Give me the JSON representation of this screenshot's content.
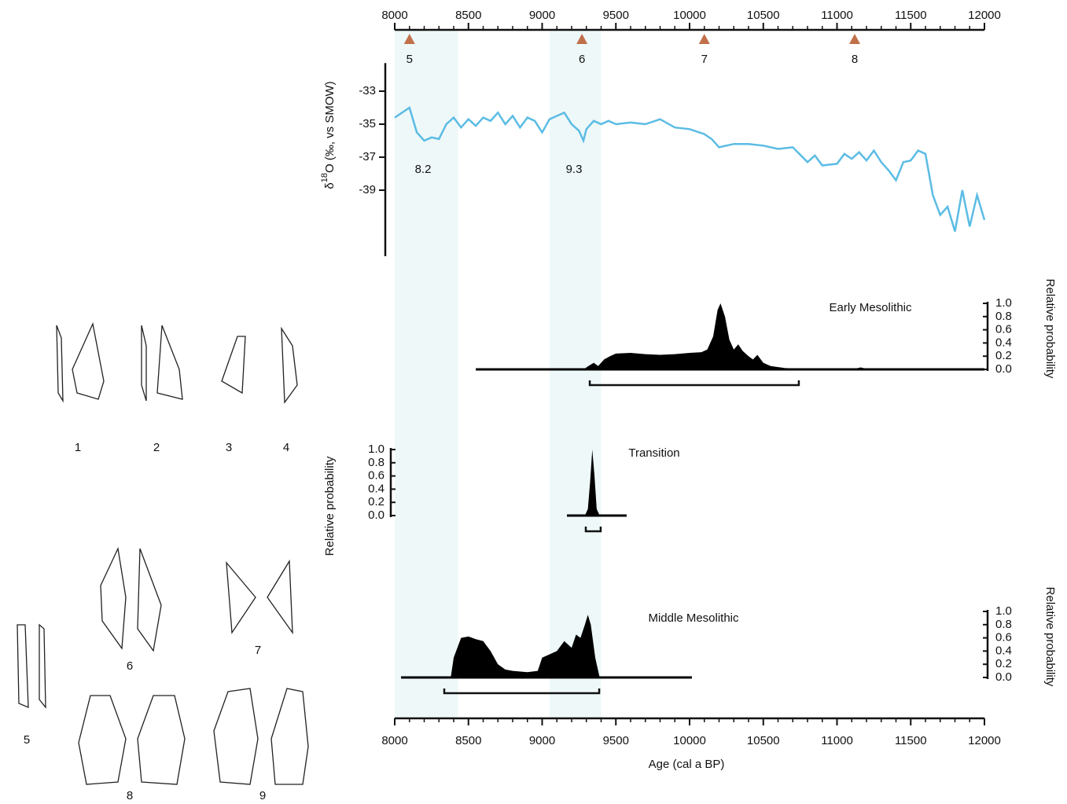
{
  "artifact_labels": [
    "1",
    "2",
    "3",
    "4",
    "5",
    "6",
    "7",
    "8",
    "9"
  ],
  "chart_data": [
    {
      "type": "line",
      "xlim": [
        8000,
        12000
      ],
      "xticks": [
        8000,
        8500,
        9000,
        9500,
        10000,
        10500,
        11000,
        11500,
        12000
      ],
      "minor_tick_step": 100,
      "xlabel": "Age (cal a BP)",
      "ylabel_symbol": "δ",
      "ylabel_superscript": "18",
      "ylabel_rest": "O (‰, vs SMOW)",
      "ylim": [
        -43,
        -31.3
      ],
      "yticks": [
        -33,
        -35,
        -37,
        -39
      ],
      "color": "#5bbce4",
      "bands": [
        [
          8000,
          8430
        ],
        [
          9050,
          9400
        ]
      ],
      "band_color": "#eef8f8",
      "annotations": [
        "8.2",
        "9.3"
      ],
      "markers": {
        "color": "#c0704a",
        "x": [
          8100,
          9270,
          10100,
          11120
        ],
        "labels": [
          "5",
          "6",
          "7",
          "8"
        ]
      },
      "x": [
        8000,
        8050,
        8100,
        8150,
        8200,
        8250,
        8300,
        8350,
        8400,
        8450,
        8500,
        8550,
        8600,
        8650,
        8700,
        8750,
        8800,
        8850,
        8900,
        8950,
        9000,
        9050,
        9100,
        9150,
        9200,
        9250,
        9280,
        9300,
        9350,
        9400,
        9450,
        9500,
        9600,
        9700,
        9800,
        9900,
        10000,
        10100,
        10150,
        10200,
        10300,
        10400,
        10500,
        10600,
        10700,
        10800,
        10850,
        10900,
        11000,
        11050,
        11100,
        11150,
        11200,
        11250,
        11300,
        11350,
        11400,
        11450,
        11500,
        11550,
        11600,
        11650,
        11700,
        11750,
        11800,
        11850,
        11900,
        11950,
        12000
      ],
      "values": [
        -34.6,
        -34.3,
        -34.0,
        -35.5,
        -36.0,
        -35.8,
        -35.9,
        -35.0,
        -34.6,
        -35.2,
        -34.7,
        -35.1,
        -34.6,
        -34.8,
        -34.3,
        -35.0,
        -34.5,
        -35.2,
        -34.6,
        -34.8,
        -35.5,
        -34.7,
        -34.5,
        -34.3,
        -35.0,
        -35.4,
        -36.0,
        -35.3,
        -34.8,
        -35.0,
        -34.8,
        -35.0,
        -34.9,
        -35.0,
        -34.7,
        -35.2,
        -35.3,
        -35.6,
        -35.9,
        -36.4,
        -36.2,
        -36.2,
        -36.3,
        -36.5,
        -36.4,
        -37.3,
        -36.9,
        -37.5,
        -37.4,
        -36.8,
        -37.1,
        -36.7,
        -37.2,
        -36.6,
        -37.3,
        -37.8,
        -38.4,
        -37.3,
        -37.2,
        -36.6,
        -36.8,
        -39.3,
        -40.5,
        -40.0,
        -41.5,
        -39.0,
        -41.2,
        -39.3,
        -40.8
      ]
    },
    {
      "type": "area",
      "label": "Early Mesolithic",
      "ylabel": "Relative probability",
      "ylim": [
        0,
        1
      ],
      "yticks": [
        {
          "value": 0,
          "label": "0.0"
        },
        0.2,
        0.4,
        0.6,
        0.8,
        {
          "value": 1,
          "label": "1.0"
        }
      ],
      "color": "#000000",
      "range": [
        9323,
        10741
      ],
      "x": [
        8550,
        9280,
        9320,
        9350,
        9380,
        9420,
        9460,
        9500,
        9600,
        9700,
        9800,
        9900,
        10000,
        10080,
        10120,
        10160,
        10190,
        10210,
        10240,
        10270,
        10300,
        10330,
        10360,
        10400,
        10430,
        10460,
        10500,
        10550,
        10650,
        10800,
        11100,
        11160,
        11220,
        12000
      ],
      "values": [
        0,
        0,
        0.06,
        0.1,
        0.05,
        0.15,
        0.2,
        0.24,
        0.25,
        0.23,
        0.22,
        0.23,
        0.25,
        0.26,
        0.3,
        0.5,
        0.9,
        1.0,
        0.8,
        0.45,
        0.3,
        0.38,
        0.28,
        0.2,
        0.15,
        0.22,
        0.1,
        0.05,
        0.02,
        0.01,
        0,
        0.03,
        0,
        0
      ]
    },
    {
      "type": "area",
      "label": "Transition",
      "ylabel": "Relative probability",
      "ylim": [
        0,
        1
      ],
      "yticks": [
        {
          "value": 0,
          "label": "0.0"
        },
        0.2,
        0.4,
        0.6,
        0.8,
        {
          "value": 1,
          "label": "1.0"
        }
      ],
      "color": "#000000",
      "range": [
        9296,
        9397
      ],
      "x": [
        9168,
        9290,
        9310,
        9325,
        9340,
        9355,
        9370,
        9390,
        9573
      ],
      "values": [
        0,
        0,
        0.1,
        0.5,
        1.0,
        0.6,
        0.1,
        0,
        0
      ]
    },
    {
      "type": "area",
      "label": "Middle Mesolithic",
      "ylabel": "Relative probability",
      "ylim": [
        0,
        1
      ],
      "yticks": [
        {
          "value": 0,
          "label": "0.0"
        },
        0.2,
        0.4,
        0.6,
        0.8,
        {
          "value": 1,
          "label": "1.0"
        }
      ],
      "color": "#000000",
      "range": [
        8336,
        9387
      ],
      "x": [
        8043,
        8380,
        8400,
        8450,
        8500,
        8550,
        8600,
        8650,
        8700,
        8750,
        8800,
        8900,
        8970,
        9000,
        9050,
        9100,
        9150,
        9200,
        9230,
        9260,
        9290,
        9310,
        9330,
        9360,
        9390,
        10016
      ],
      "values": [
        0,
        0,
        0.3,
        0.6,
        0.62,
        0.58,
        0.55,
        0.4,
        0.2,
        0.12,
        0.1,
        0.08,
        0.1,
        0.3,
        0.35,
        0.4,
        0.55,
        0.45,
        0.65,
        0.6,
        0.8,
        0.95,
        0.8,
        0.3,
        0,
        0
      ]
    }
  ]
}
